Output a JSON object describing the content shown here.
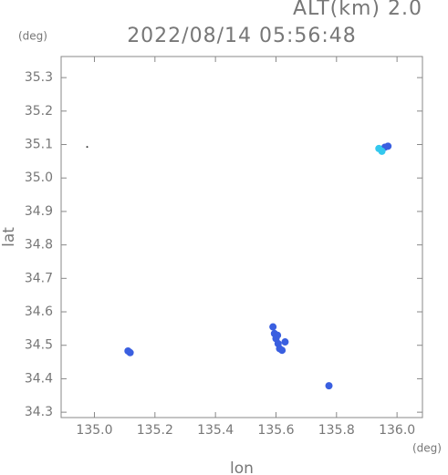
{
  "chart_data": {
    "type": "scatter",
    "title": "2022/08/14 05:56:48",
    "subtitle": "ALT(km) 2.0",
    "y_unit": "(deg)",
    "x_unit": "(deg)",
    "xlabel": "lon",
    "ylabel": "lat",
    "xlim": [
      134.89,
      136.084
    ],
    "ylim": [
      34.284,
      35.363
    ],
    "xticks": [
      {
        "value": 135,
        "label": "135.0"
      },
      135.2,
      135.4,
      135.6,
      135.8,
      {
        "value": 136,
        "label": "136.0"
      }
    ],
    "yticks": [
      34.3,
      34.4,
      34.5,
      34.6,
      34.7,
      34.8,
      34.9,
      {
        "value": 35,
        "label": "35.0"
      },
      35.1,
      35.2,
      35.3
    ],
    "series": [
      {
        "color": "#333333",
        "size": 1,
        "x": [
          134.976
        ],
        "values": [
          35.093
        ]
      },
      {
        "color": "#3a5fe0",
        "size": 4,
        "x": [
          135.111,
          135.118,
          135.59,
          135.595,
          135.6,
          135.607,
          135.612,
          135.62,
          135.605,
          135.63,
          135.775,
          135.96,
          135.97
        ],
        "values": [
          34.483,
          34.478,
          34.555,
          34.535,
          34.52,
          34.505,
          34.49,
          34.485,
          34.53,
          34.51,
          34.379,
          35.092,
          35.095
        ]
      },
      {
        "color": "#33c8ee",
        "size": 4,
        "x": [
          135.94,
          135.95
        ],
        "values": [
          35.088,
          35.08
        ]
      }
    ]
  }
}
